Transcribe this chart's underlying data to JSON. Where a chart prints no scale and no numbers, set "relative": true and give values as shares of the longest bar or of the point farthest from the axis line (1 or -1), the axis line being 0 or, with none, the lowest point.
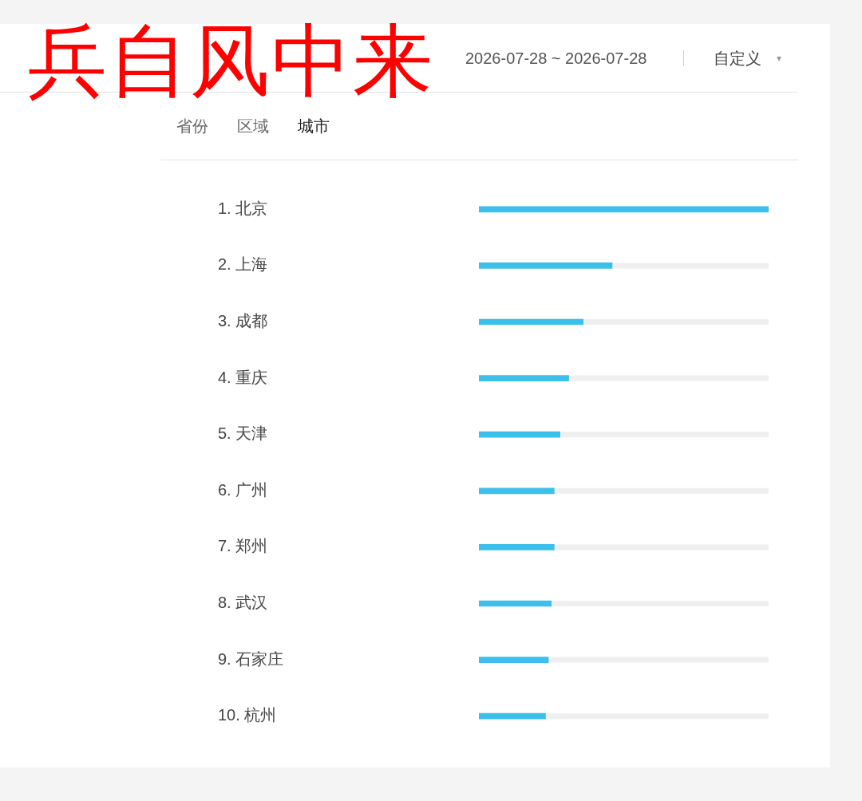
{
  "chart_data": {
    "type": "bar",
    "orientation": "horizontal",
    "relative": true,
    "title": "兵自风中来",
    "subtitle": "2026-07-28 ~ 2026-07-28",
    "annotations": [
      "自定义",
      "省份",
      "区域",
      "城市"
    ],
    "categories": [
      "1. 北京",
      "2. 上海",
      "3. 成都",
      "4. 重庆",
      "5. 天津",
      "6. 广州",
      "7. 郑州",
      "8. 武汉",
      "9. 石家庄",
      "10. 杭州"
    ],
    "values": [
      1,
      0.46,
      0.36,
      0.31,
      0.28,
      0.26,
      0.26,
      0.25,
      0.24,
      0.23
    ],
    "color": "#3dbfec"
  }
}
